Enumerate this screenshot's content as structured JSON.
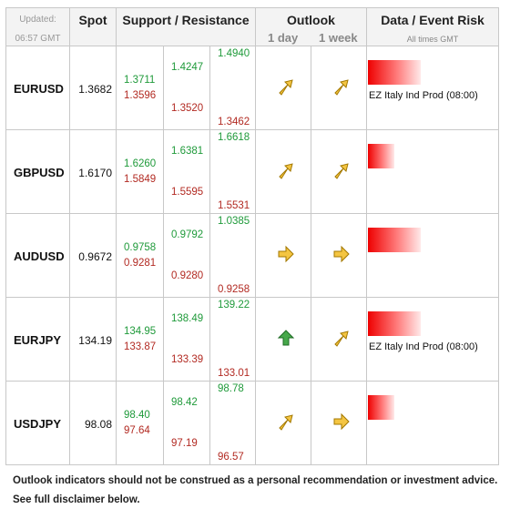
{
  "header": {
    "updated_label": "Updated:",
    "updated_time": "06:57 GMT",
    "spot": "Spot",
    "sr": "Support / Resistance",
    "outlook": "Outlook",
    "outlook_1day": "1 day",
    "outlook_1week": "1 week",
    "risk": "Data / Event Risk",
    "risk_sub": "All times GMT"
  },
  "rows": [
    {
      "pair": "EURUSD",
      "spot": "1.3682",
      "s1_top": "1.3711",
      "s1_bot": "1.3596",
      "s2_top": "1.4247",
      "s2_bot": "1.3520",
      "s3_top": "1.4940",
      "s3_bot": "1.3462",
      "day": "up-right",
      "week": "up-right",
      "risk_level": 0.6,
      "event": "EZ Italy Ind Prod (08:00)"
    },
    {
      "pair": "GBPUSD",
      "spot": "1.6170",
      "s1_top": "1.6260",
      "s1_bot": "1.5849",
      "s2_top": "1.6381",
      "s2_bot": "1.5595",
      "s3_top": "1.6618",
      "s3_bot": "1.5531",
      "day": "up-right",
      "week": "up-right",
      "risk_level": 0.3,
      "event": ""
    },
    {
      "pair": "AUDUSD",
      "spot": "0.9672",
      "s1_top": "0.9758",
      "s1_bot": "0.9281",
      "s2_top": "0.9792",
      "s2_bot": "0.9280",
      "s3_top": "1.0385",
      "s3_bot": "0.9258",
      "day": "right",
      "week": "right",
      "risk_level": 0.6,
      "event": ""
    },
    {
      "pair": "EURJPY",
      "spot": "134.19",
      "s1_top": "134.95",
      "s1_bot": "133.87",
      "s2_top": "138.49",
      "s2_bot": "133.39",
      "s3_top": "139.22",
      "s3_bot": "133.01",
      "day": "up",
      "week": "up-right",
      "risk_level": 0.6,
      "event": "EZ Italy Ind Prod (08:00)"
    },
    {
      "pair": "USDJPY",
      "spot": "98.08",
      "s1_top": "98.40",
      "s1_bot": "97.64",
      "s2_top": "98.42",
      "s2_bot": "97.19",
      "s3_top": "98.78",
      "s3_bot": "96.57",
      "day": "up-right",
      "week": "right",
      "risk_level": 0.3,
      "event": ""
    }
  ],
  "footer": {
    "line1": "Outlook indicators should not be construed as a personal recommendation or investment advice.",
    "line2": "See full disclaimer below."
  },
  "colors": {
    "support": "#b22a22",
    "resistance": "#1f9a3a",
    "arrow_yellow": "#f4c542",
    "arrow_green": "#46a84a",
    "risk_bar": "#ee0000"
  }
}
